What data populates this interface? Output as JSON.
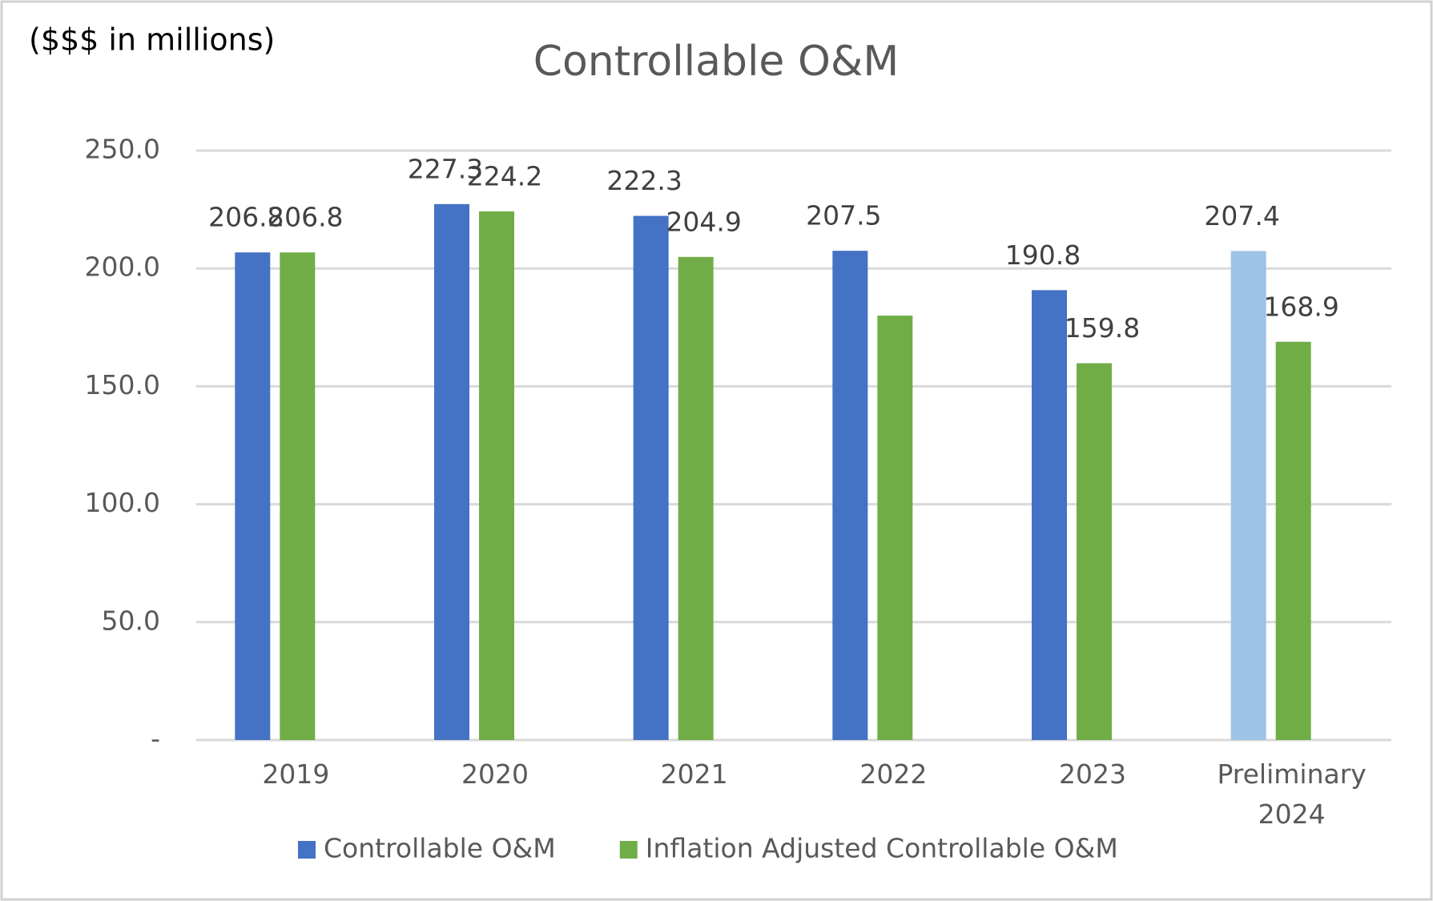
{
  "chart_data": {
    "type": "bar",
    "title": "Controllable O&M",
    "subtitle": "($$$ in millions)",
    "categories": [
      "2019",
      "2020",
      "2021",
      "2022",
      "2023",
      "Preliminary 2024"
    ],
    "series": [
      {
        "name": "Controllable O&M",
        "color": "#4472c4",
        "colors": [
          "#4472c4",
          "#4472c4",
          "#4472c4",
          "#4472c4",
          "#4472c4",
          "#9dc3e6"
        ],
        "values": [
          206.8,
          227.3,
          222.3,
          207.5,
          190.8,
          207.4
        ]
      },
      {
        "name": "Inflation Adjusted Controllable O&M",
        "color": "#70ad47",
        "values": [
          206.8,
          224.2,
          204.9,
          180,
          159.8,
          168.9
        ],
        "value_labels": [
          "206.8",
          "224.2",
          "204.9",
          null,
          "159.8",
          "168.9"
        ]
      }
    ],
    "ylim": [
      0,
      250
    ],
    "yticks": [
      {
        "value": 0,
        "label": "-"
      },
      {
        "value": 50,
        "label": "50.0"
      },
      {
        "value": 100,
        "label": "100.0"
      },
      {
        "value": 150,
        "label": "150.0"
      },
      {
        "value": 200,
        "label": "200.0"
      },
      {
        "value": 250,
        "label": "250.0"
      }
    ],
    "grid": true,
    "legend": "bottom"
  }
}
